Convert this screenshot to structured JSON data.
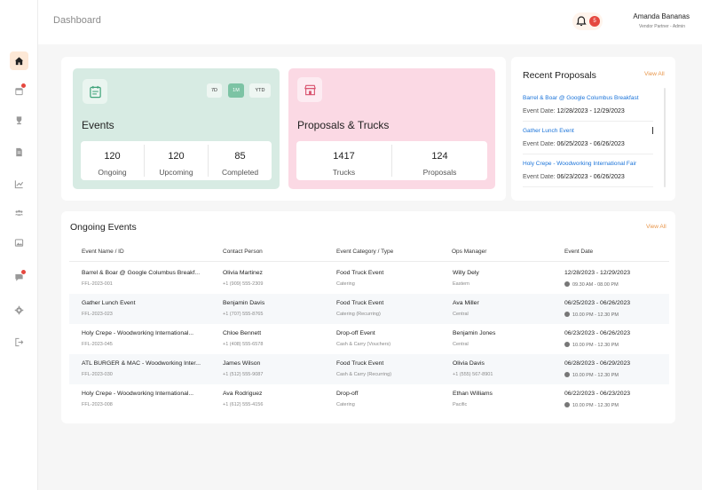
{
  "header": {
    "title": "Dashboard",
    "notification_count": "5",
    "user_name": "Amanda Bananas",
    "user_role": "Vendor Partner - Admin"
  },
  "sidebar": {
    "items": [
      {
        "icon": "home-icon",
        "active": true
      },
      {
        "icon": "calendar-icon",
        "badge": true
      },
      {
        "icon": "trophy-icon"
      },
      {
        "icon": "document-icon"
      },
      {
        "icon": "chart-icon"
      },
      {
        "icon": "users-icon"
      },
      {
        "icon": "image-icon"
      },
      {
        "icon": "chat-icon",
        "badge": true
      },
      {
        "icon": "settings-icon"
      },
      {
        "icon": "logout-icon"
      }
    ]
  },
  "events_card": {
    "title": "Events",
    "ranges": [
      "7D",
      "1M",
      "YTD"
    ],
    "selected_range": "1M",
    "stats": [
      {
        "value": "120",
        "label": "Ongoing"
      },
      {
        "value": "120",
        "label": "Upcoming"
      },
      {
        "value": "85",
        "label": "Completed"
      }
    ]
  },
  "proposals_card": {
    "title": "Proposals & Trucks",
    "stats": [
      {
        "value": "1417",
        "label": "Trucks"
      },
      {
        "value": "124",
        "label": "Proposals"
      }
    ]
  },
  "recent_proposals": {
    "title": "Recent Proposals",
    "view_all": "View All",
    "date_label": "Event Date:",
    "items": [
      {
        "name": "Barrel & Boar @ Google Columbus Breakfast",
        "dates": "12/28/2023 - 12/29/2023"
      },
      {
        "name": "Gather Lunch Event",
        "dates": "06/25/2023 - 06/26/2023"
      },
      {
        "name": "Holy Crepe - Woodworking International Fair",
        "dates": "06/23/2023 - 06/26/2023"
      }
    ]
  },
  "ongoing_events": {
    "title": "Ongoing Events",
    "view_all": "View All",
    "columns": [
      "Event Name / ID",
      "Contact Person",
      "Event Category / Type",
      "Ops Manager",
      "Event Date"
    ],
    "rows": [
      {
        "name": "Barrel & Boar @ Google Columbus Breakf...",
        "id": "FFL-2023-001",
        "contact": "Olivia Martinez",
        "phone": "+1 (909) 555-2309",
        "category": "Food Truck Event",
        "type": "Catering",
        "manager": "Willy Dely",
        "region": "Eastern",
        "dates": "12/28/2023 - 12/29/2023",
        "time": "09.30 AM - 08.00 PM"
      },
      {
        "name": "Gather Lunch Event",
        "id": "FFL-2023-023",
        "contact": "Benjamin Davis",
        "phone": "+1 (707) 555-8765",
        "category": "Food Truck Event",
        "type": "Catering (Recurring)",
        "manager": "Ava Miller",
        "region": "Central",
        "dates": "06/25/2023 - 06/26/2023",
        "time": "10.00 PM - 12.30 PM"
      },
      {
        "name": "Holy Crepe - Woodworking International...",
        "id": "FFL-2023-045",
        "contact": "Chloe Bennett",
        "phone": "+1 (408) 555-6578",
        "category": "Drop-off Event",
        "type": "Cash & Carry (Vouchers)",
        "manager": "Benjamin Jones",
        "region": "Central",
        "dates": "06/23/2023 - 06/26/2023",
        "time": "10.00 PM - 12.30 PM"
      },
      {
        "name": "ATL BURGER & MAC - Woodworking Inter...",
        "id": "FFL-2023-030",
        "contact": "James Wilson",
        "phone": "+1 (512) 555-9087",
        "category": "Food Truck Event",
        "type": "Cash & Carry (Recurring)",
        "manager": "Olivia Davis",
        "region": "+1 (555) 567-8901",
        "dates": "06/28/2023 - 06/29/2023",
        "time": "10.00 PM - 12.30 PM"
      },
      {
        "name": "Holy Crepe - Woodworking International...",
        "id": "FFL-2023-008",
        "contact": "Ava Rodriguez",
        "phone": "+1 (612) 555-4156",
        "category": "Drop-off",
        "type": "Catering",
        "manager": "Ethan Williams",
        "region": "Pacific",
        "dates": "06/22/2023 - 06/23/2023",
        "time": "10.00 PM - 12.30 PM"
      }
    ]
  },
  "colors": {
    "accent": "#e8964a",
    "events_card": "#d7ebe3",
    "proposals_card": "#fbd9e4",
    "link": "#1a73d9",
    "badge": "#e5483f"
  }
}
